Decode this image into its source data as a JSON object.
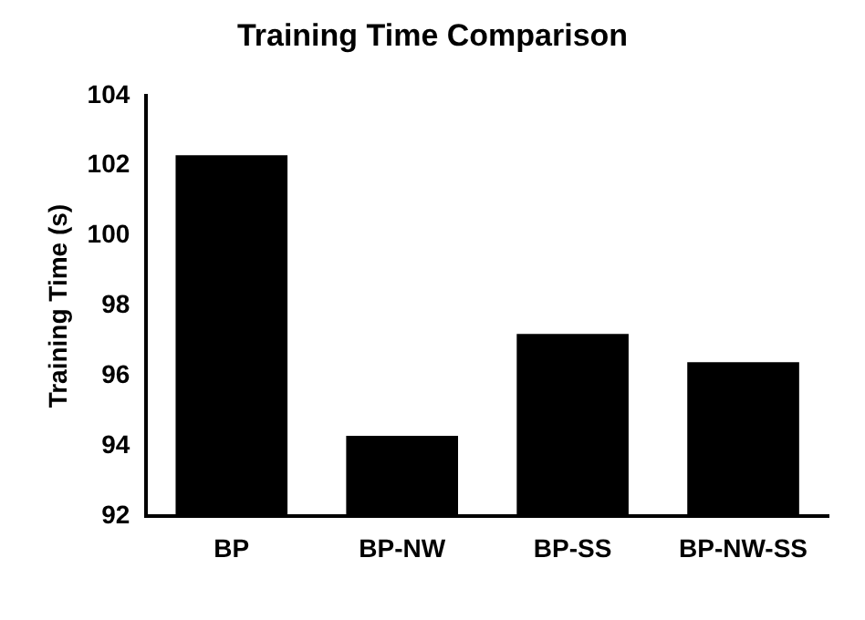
{
  "chart_data": {
    "type": "bar",
    "title": "Training Time Comparison",
    "ylabel": "Training Time (s)",
    "categories": [
      "BP",
      "BP-NW",
      "BP-SS",
      "BP-NW-SS"
    ],
    "values": [
      102.3,
      94.3,
      97.2,
      96.4
    ],
    "color": "#000000",
    "ylim": [
      92,
      104
    ],
    "yticks": [
      92,
      94,
      96,
      98,
      100,
      102,
      104
    ],
    "grid": false,
    "legend": false
  }
}
